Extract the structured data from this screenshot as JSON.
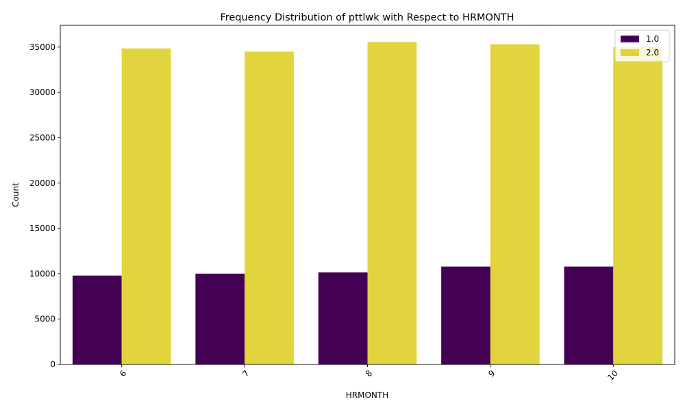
{
  "chart_data": {
    "type": "bar",
    "title": "Frequency Distribution of pttlwk with Respect to HRMONTH",
    "xlabel": "HRMONTH",
    "ylabel": "Count",
    "categories": [
      "6",
      "7",
      "8",
      "9",
      "10"
    ],
    "series": [
      {
        "name": "1.0",
        "color": "#440154",
        "values": [
          9800,
          10000,
          10150,
          10800,
          10800
        ]
      },
      {
        "name": "2.0",
        "color": "#e2d43c",
        "values": [
          34850,
          34500,
          35550,
          35300,
          35000
        ]
      }
    ],
    "yticks": [
      0,
      5000,
      10000,
      15000,
      20000,
      25000,
      30000,
      35000
    ],
    "ylim": [
      0,
      37400
    ],
    "grid": false,
    "legend_position": "top-right",
    "xtick_rotation_deg": 45
  }
}
